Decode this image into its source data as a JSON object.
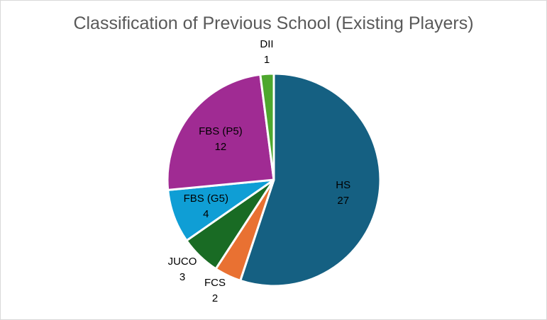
{
  "chart_data": {
    "type": "pie",
    "title": "Classification of Previous School (Existing Players)",
    "categories": [
      "HS",
      "FCS",
      "JUCO",
      "FBS (G5)",
      "FBS (P5)",
      "DII"
    ],
    "values": [
      27,
      2,
      3,
      4,
      12,
      1
    ],
    "colors": [
      "#156082",
      "#E97132",
      "#196B24",
      "#0F9ED5",
      "#A02B93",
      "#4EA72E"
    ],
    "data_labels": "category and value",
    "legend": "none"
  }
}
